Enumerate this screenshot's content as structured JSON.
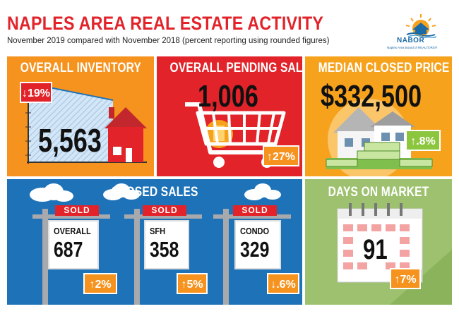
{
  "header": {
    "title": "NAPLES AREA REAL ESTATE ACTIVITY",
    "subtitle": "November 2019 compared with November 2018 (percent reporting using rounded figures)"
  },
  "logo": {
    "name": "NABOR",
    "tagline": "Naples Area Board of REALTORS®"
  },
  "inventory": {
    "title": "OVERALL INVENTORY",
    "value": "5,563",
    "change": "↓19%"
  },
  "pending": {
    "title": "OVERALL PENDING SALES",
    "value": "1,006",
    "change": "↑27%"
  },
  "median": {
    "title": "MEDIAN CLOSED PRICE",
    "value": "$332,500",
    "change": "↑.8%"
  },
  "closed": {
    "title": "CLOSED SALES",
    "signs": [
      {
        "sold": "SOLD",
        "label": "OVERALL",
        "value": "687",
        "change": "↑2%"
      },
      {
        "sold": "SOLD",
        "label": "SFH",
        "value": "358",
        "change": "↑5%"
      },
      {
        "sold": "SOLD",
        "label": "CONDO",
        "value": "329",
        "change": "↓.6%"
      }
    ]
  },
  "dom": {
    "title": "DAYS ON MARKET",
    "value": "91",
    "change": "↑7%"
  },
  "colors": {
    "title_red": "#e2232a",
    "orange": "#f6921e",
    "red": "#e2232a",
    "gold": "#f6a21d",
    "blue": "#1e72b8",
    "green": "#9dc16e",
    "badge_green": "#8cc63f"
  }
}
